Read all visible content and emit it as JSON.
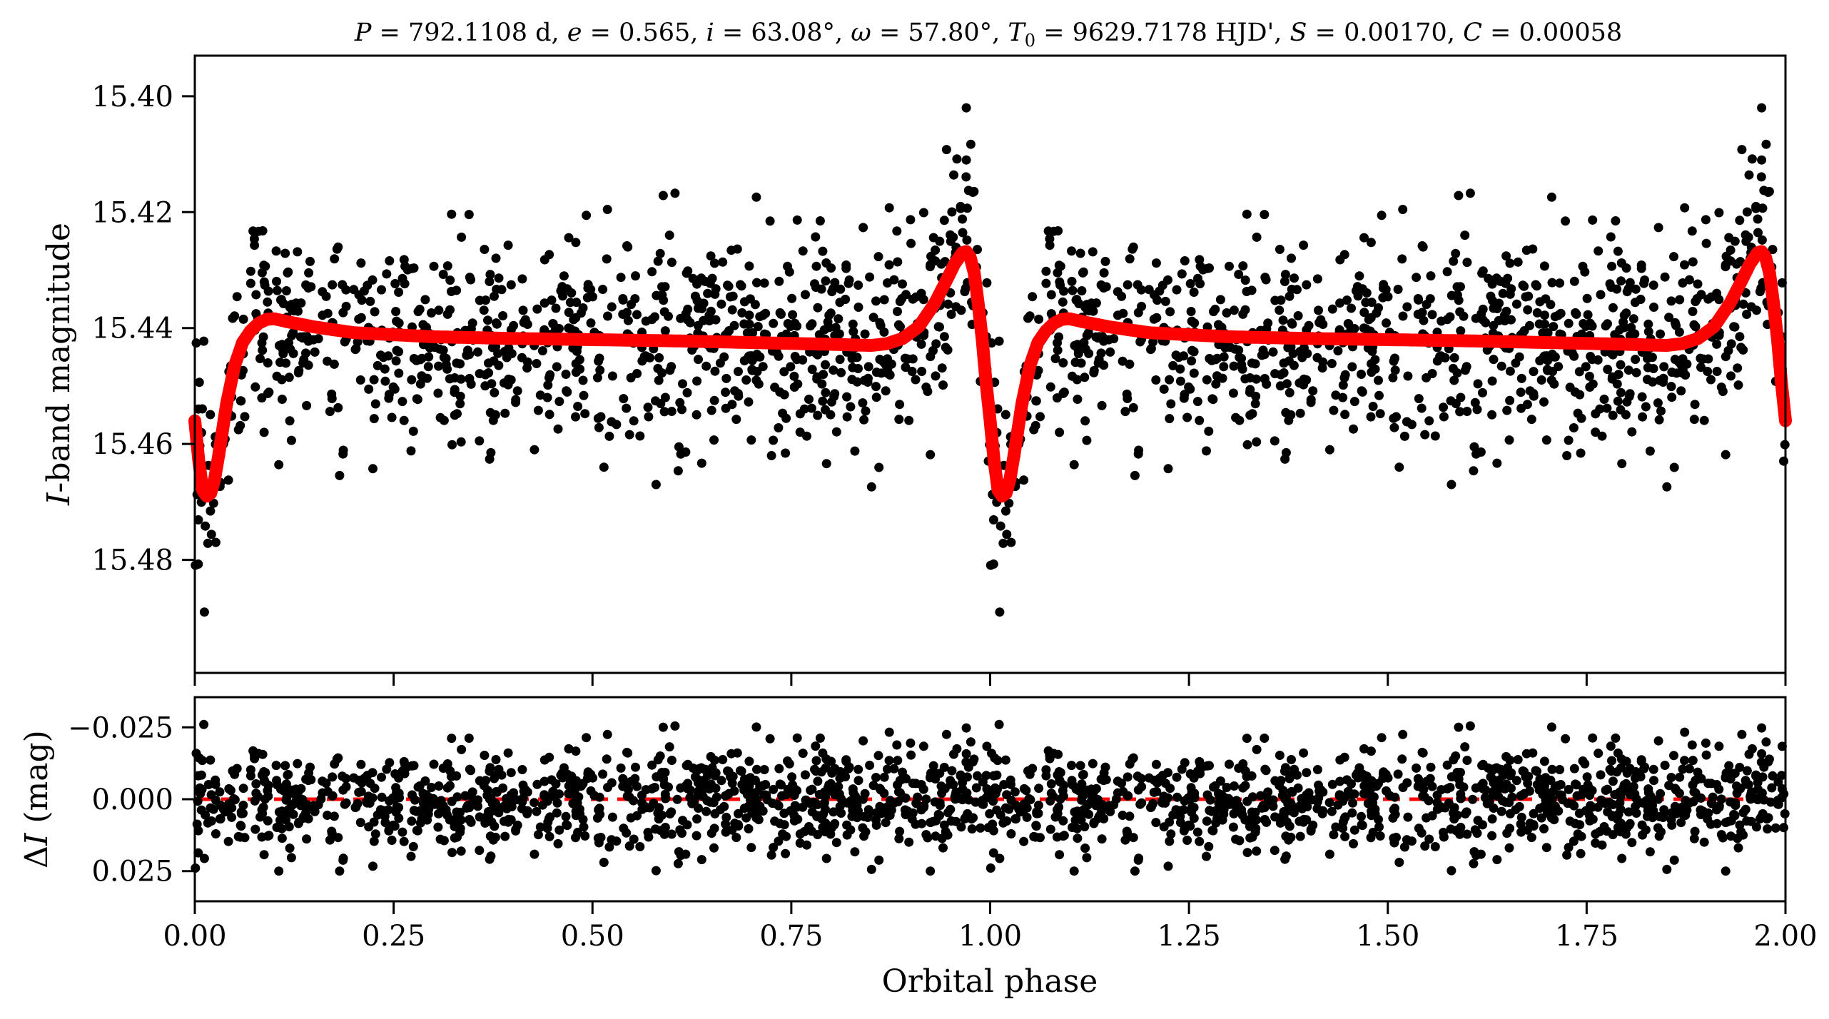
{
  "chart_data": [
    {
      "type": "scatter",
      "panel": "light-curve",
      "title": "P = 792.1108 d, e = 0.565, i = 63.08°, ω = 57.80°, T0 = 9629.7178 HJD', S = 0.00170, C = 0.00058",
      "title_parts": {
        "P_sym": "P",
        "P_val": "792.1108 d",
        "e_sym": "e",
        "e_val": "0.565",
        "i_sym": "i",
        "i_val": "63.08°",
        "w_sym": "ω",
        "w_val": "57.80°",
        "T_sym": "T",
        "T_sub": "0",
        "T_val": "9629.7178 HJD'",
        "S_sym": "S",
        "S_val": "0.00170",
        "C_sym": "C",
        "C_val": "0.00058"
      },
      "ylabel_italic": "I",
      "ylabel_rest": "-band magnitude",
      "xlim": [
        0.0,
        2.0
      ],
      "ylim": [
        15.4995,
        15.393
      ],
      "y_inverted": true,
      "yticks": [
        15.4,
        15.42,
        15.44,
        15.46,
        15.48
      ],
      "ytick_labels": [
        "15.40",
        "15.42",
        "15.44",
        "15.46",
        "15.48"
      ],
      "series": [
        {
          "kind": "observations",
          "color": "#000000",
          "description": "≈1000 photometric points per cycle repeated over two cycles; scattered around the model with σ ≈ 0.009 mag",
          "notable_points": [
            {
              "x": 0.012,
              "y": 15.489
            },
            {
              "x": 0.97,
              "y": 15.402
            },
            {
              "x": 0.97,
              "y": 15.411
            },
            {
              "x": 0.58,
              "y": 15.467
            }
          ]
        },
        {
          "kind": "model",
          "color": "#ff0000",
          "description": "Eccentric ellipsoidal / heartbeat model light curve",
          "x": [
            0.0,
            0.005,
            0.01,
            0.015,
            0.02,
            0.025,
            0.03,
            0.04,
            0.05,
            0.06,
            0.07,
            0.08,
            0.09,
            0.1,
            0.12,
            0.15,
            0.2,
            0.3,
            0.4,
            0.5,
            0.6,
            0.7,
            0.8,
            0.85,
            0.87,
            0.89,
            0.91,
            0.93,
            0.945,
            0.955,
            0.965,
            0.97,
            0.975,
            0.98,
            0.985,
            0.99,
            0.995,
            1.0
          ],
          "y": [
            15.456,
            15.463,
            15.468,
            15.469,
            15.4685,
            15.466,
            15.462,
            15.453,
            15.4465,
            15.4425,
            15.4405,
            15.4392,
            15.4385,
            15.4384,
            15.439,
            15.4398,
            15.4408,
            15.4415,
            15.4418,
            15.442,
            15.4422,
            15.4425,
            15.4428,
            15.443,
            15.4427,
            15.4418,
            15.4398,
            15.4358,
            15.4318,
            15.429,
            15.427,
            15.4268,
            15.4278,
            15.4305,
            15.4358,
            15.442,
            15.4495,
            15.456
          ]
        }
      ]
    },
    {
      "type": "scatter",
      "panel": "residuals",
      "xlabel": "Orbital phase",
      "ylabel_delta": "Δ",
      "ylabel_italic": "I",
      "ylabel_rest": " (mag)",
      "xlim": [
        0.0,
        2.0
      ],
      "ylim": [
        0.0355,
        -0.0355
      ],
      "y_inverted": true,
      "yticks": [
        -0.025,
        0.0,
        0.025
      ],
      "ytick_labels": [
        "−0.025",
        "0.000",
        "0.025"
      ],
      "xticks": [
        0.0,
        0.25,
        0.5,
        0.75,
        1.0,
        1.25,
        1.5,
        1.75,
        2.0
      ],
      "xtick_labels": [
        "0.00",
        "0.25",
        "0.50",
        "0.75",
        "1.00",
        "1.25",
        "1.50",
        "1.75",
        "2.00"
      ],
      "series": [
        {
          "kind": "residuals",
          "color": "#000000",
          "description": "Observed minus model, σ ≈ 0.009 mag, extremes near −0.026 and +0.025"
        },
        {
          "kind": "zero-line",
          "color": "#ff0000",
          "style": "dashed",
          "y": 0.0
        }
      ]
    }
  ]
}
